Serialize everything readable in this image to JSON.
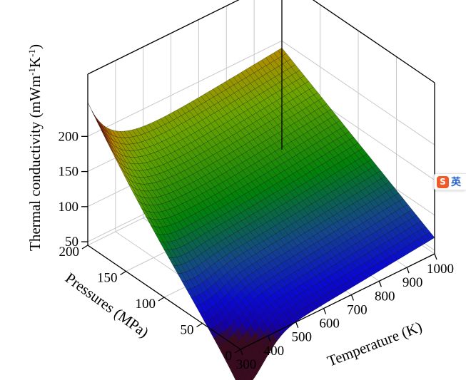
{
  "chart_data": {
    "type": "surface",
    "zlabel": "Thermal conductivity (mWm",
    "zlabel_sup1": "-1",
    "zlabel_mid": "K",
    "zlabel_sup2": "-1",
    "zlabel_end": ")",
    "xlabel": "Temperature (K)",
    "ylabel": "Pressures (MPa)",
    "xlim": [
      300,
      1000
    ],
    "ylim": [
      0,
      200
    ],
    "zlim": [
      30,
      215
    ],
    "x_ticks": [
      "300",
      "400",
      "500",
      "600",
      "700",
      "800",
      "900",
      "1000"
    ],
    "y_ticks": [
      "0",
      "50",
      "100",
      "150",
      "200"
    ],
    "z_ticks": [
      "50",
      "100",
      "150",
      "200"
    ],
    "colormap": [
      "#3a0a1e",
      "#0000cc",
      "#1414d0",
      "#00800a",
      "#6aa000",
      "#b08a00",
      "#9a2a0a"
    ],
    "corner_values": [
      {
        "T": 300,
        "P": 0,
        "k": 38
      },
      {
        "T": 300,
        "P": 200,
        "k": 207
      },
      {
        "T": 1000,
        "P": 0,
        "k": 75
      },
      {
        "T": 1000,
        "P": 200,
        "k": 167
      }
    ]
  },
  "ime_indicator": {
    "logo": "S",
    "text": "英"
  }
}
